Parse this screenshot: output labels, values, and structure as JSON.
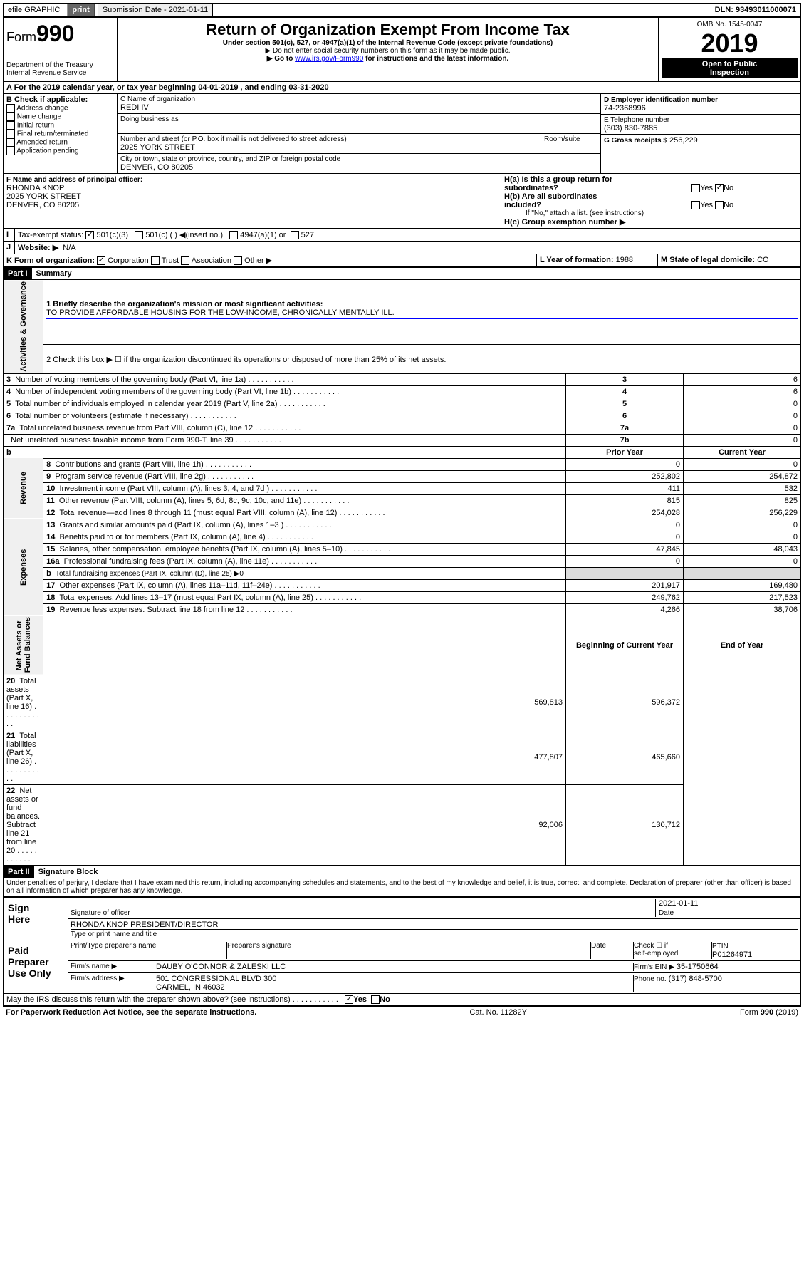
{
  "topbar": {
    "efile": "efile GRAPHIC",
    "print": "print",
    "subdate_label": "Submission Date - 2021-01-11",
    "dln_label": "DLN: 93493011000071"
  },
  "header": {
    "form_prefix": "Form",
    "form_num": "990",
    "title": "Return of Organization Exempt From Income Tax",
    "subtitle": "Under section 501(c), 527, or 4947(a)(1) of the Internal Revenue Code (except private foundations)",
    "note1": "▶ Do not enter social security numbers on this form as it may be made public.",
    "note2": "▶ Go to",
    "note2_link": "www.irs.gov/Form990",
    "note2_tail": "for instructions and the latest information.",
    "dept": "Department of the Treasury\nInternal Revenue Service",
    "omb": "OMB No. 1545-0047",
    "year": "2019",
    "badge": "Open to Public\nInspection"
  },
  "sectionA": {
    "line": "A For the 2019 calendar year, or tax year beginning 04-01-2019    , and ending 03-31-2020",
    "b_label": "B Check if applicable:",
    "b_opts": [
      "Address change",
      "Name change",
      "Initial return",
      "Final return/terminated",
      "Amended return",
      "Application pending"
    ],
    "c_label": "C Name of organization",
    "c_val": "REDI IV",
    "dba": "Doing business as",
    "addr_label": "Number and street (or P.O. box if mail is not delivered to street address)",
    "addr_val": "2025 YORK STREET",
    "room": "Room/suite",
    "city_label": "City or town, state or province, country, and ZIP or foreign postal code",
    "city_val": "DENVER, CO  80205",
    "d_label": "D Employer identification number",
    "d_val": "74-2368996",
    "e_label": "E Telephone number",
    "e_val": "(303) 830-7885",
    "g_label": "G Gross receipts $",
    "g_val": "256,229",
    "f_label": "F  Name and address of principal officer:",
    "f_name": "RHONDA KNOP",
    "f_addr1": "2025 YORK STREET",
    "f_addr2": "DENVER, CO  80205",
    "ha_label": "H(a)  Is this a group return for\n         subordinates?",
    "hb_label": "H(b)  Are all subordinates\n        included?",
    "hb_note": "If \"No,\" attach a list. (see instructions)",
    "hc_label": "H(c)  Group exemption number ▶",
    "yes": "Yes",
    "no": "No",
    "i_label": "Tax-exempt status:",
    "i_501c3": "501(c)(3)",
    "i_501c": "501(c) (  ) ◀(insert no.)",
    "i_4947": "4947(a)(1) or",
    "i_527": "527",
    "j_label": "Website: ▶",
    "j_val": "N/A",
    "k_label": "K Form of organization:",
    "k_corp": "Corporation",
    "k_trust": "Trust",
    "k_assoc": "Association",
    "k_other": "Other ▶",
    "l_label": "L Year of formation:",
    "l_val": "1988",
    "m_label": "M State of legal domicile:",
    "m_val": "CO"
  },
  "part1": {
    "hdr": "Part I",
    "title": "Summary",
    "q1": "1  Briefly describe the organization's mission or most significant activities:",
    "q1_val": "TO PROVIDE AFFORDABLE HOUSING FOR THE LOW-INCOME, CHRONICALLY MENTALLY ILL.",
    "vlabel1": "Activities & Governance",
    "vlabel2": "Revenue",
    "vlabel3": "Expenses",
    "vlabel4": "Net Assets or\nFund Balances",
    "q2": "2    Check this box ▶ ☐  if the organization discontinued its operations or disposed of more than 25% of its net assets.",
    "lines_gov": [
      {
        "n": "3",
        "t": "Number of voting members of the governing body (Part VI, line 1a)",
        "box": "3",
        "v": "6"
      },
      {
        "n": "4",
        "t": "Number of independent voting members of the governing body (Part VI, line 1b)",
        "box": "4",
        "v": "6"
      },
      {
        "n": "5",
        "t": "Total number of individuals employed in calendar year 2019 (Part V, line 2a)",
        "box": "5",
        "v": "0"
      },
      {
        "n": "6",
        "t": "Total number of volunteers (estimate if necessary)",
        "box": "6",
        "v": "0"
      },
      {
        "n": "7a",
        "t": "Total unrelated business revenue from Part VIII, column (C), line 12",
        "box": "7a",
        "v": "0"
      },
      {
        "n": "",
        "t": "Net unrelated business taxable income from Form 990-T, line 39",
        "box": "7b",
        "v": "0"
      }
    ],
    "col_prior": "Prior Year",
    "col_current": "Current Year",
    "col_begin": "Beginning of Current Year",
    "col_end": "End of Year",
    "lines_rev": [
      {
        "n": "8",
        "t": "Contributions and grants (Part VIII, line 1h)",
        "p": "0",
        "c": "0"
      },
      {
        "n": "9",
        "t": "Program service revenue (Part VIII, line 2g)",
        "p": "252,802",
        "c": "254,872"
      },
      {
        "n": "10",
        "t": "Investment income (Part VIII, column (A), lines 3, 4, and 7d )",
        "p": "411",
        "c": "532"
      },
      {
        "n": "11",
        "t": "Other revenue (Part VIII, column (A), lines 5, 6d, 8c, 9c, 10c, and 11e)",
        "p": "815",
        "c": "825"
      },
      {
        "n": "12",
        "t": "Total revenue—add lines 8 through 11 (must equal Part VIII, column (A), line 12)",
        "p": "254,028",
        "c": "256,229"
      }
    ],
    "lines_exp": [
      {
        "n": "13",
        "t": "Grants and similar amounts paid (Part IX, column (A), lines 1–3 )",
        "p": "0",
        "c": "0"
      },
      {
        "n": "14",
        "t": "Benefits paid to or for members (Part IX, column (A), line 4)",
        "p": "0",
        "c": "0"
      },
      {
        "n": "15",
        "t": "Salaries, other compensation, employee benefits (Part IX, column (A), lines 5–10)",
        "p": "47,845",
        "c": "48,043"
      },
      {
        "n": "16a",
        "t": "Professional fundraising fees (Part IX, column (A), line 11e)",
        "p": "0",
        "c": "0"
      },
      {
        "n": "b",
        "t": "Total fundraising expenses (Part IX, column (D), line 25) ▶0",
        "p": "",
        "c": ""
      },
      {
        "n": "17",
        "t": "Other expenses (Part IX, column (A), lines 11a–11d, 11f–24e)",
        "p": "201,917",
        "c": "169,480"
      },
      {
        "n": "18",
        "t": "Total expenses. Add lines 13–17 (must equal Part IX, column (A), line 25)",
        "p": "249,762",
        "c": "217,523"
      },
      {
        "n": "19",
        "t": "Revenue less expenses. Subtract line 18 from line 12",
        "p": "4,266",
        "c": "38,706"
      }
    ],
    "lines_net": [
      {
        "n": "20",
        "t": "Total assets (Part X, line 16)",
        "p": "569,813",
        "c": "596,372"
      },
      {
        "n": "21",
        "t": "Total liabilities (Part X, line 26)",
        "p": "477,807",
        "c": "465,660"
      },
      {
        "n": "22",
        "t": "Net assets or fund balances. Subtract line 21 from line 20",
        "p": "92,006",
        "c": "130,712"
      }
    ]
  },
  "part2": {
    "hdr": "Part II",
    "title": "Signature Block",
    "perjury": "Under penalties of perjury, I declare that I have examined this return, including accompanying schedules and statements, and to the best of my knowledge and belief, it is true, correct, and complete. Declaration of preparer (other than officer) is based on all information of which preparer has any knowledge.",
    "sign_here": "Sign\nHere",
    "sig_officer": "Signature of officer",
    "sig_date": "2021-01-11",
    "date_lbl": "Date",
    "officer_name": "RHONDA KNOP PRESIDENT/DIRECTOR",
    "type_name": "Type or print name and title",
    "paid": "Paid\nPreparer\nUse Only",
    "prep_name_lbl": "Print/Type preparer's name",
    "prep_sig_lbl": "Preparer's signature",
    "prep_date_lbl": "Date",
    "chk_self": "Check ☐ if\nself-employed",
    "ptin_lbl": "PTIN",
    "ptin": "P01264971",
    "firm_name_lbl": "Firm's name    ▶",
    "firm_name": "DAUBY O'CONNOR & ZALESKI LLC",
    "firm_ein_lbl": "Firm's EIN ▶",
    "firm_ein": "35-1750664",
    "firm_addr_lbl": "Firm's address ▶",
    "firm_addr": "501 CONGRESSIONAL BLVD 300\nCARMEL, IN  46032",
    "phone_lbl": "Phone no.",
    "phone": "(317) 848-5700",
    "discuss": "May the IRS discuss this return with the preparer shown above? (see instructions)"
  },
  "footer": {
    "paperwork": "For Paperwork Reduction Act Notice, see the separate instructions.",
    "cat": "Cat. No. 11282Y",
    "form": "Form 990 (2019)"
  }
}
